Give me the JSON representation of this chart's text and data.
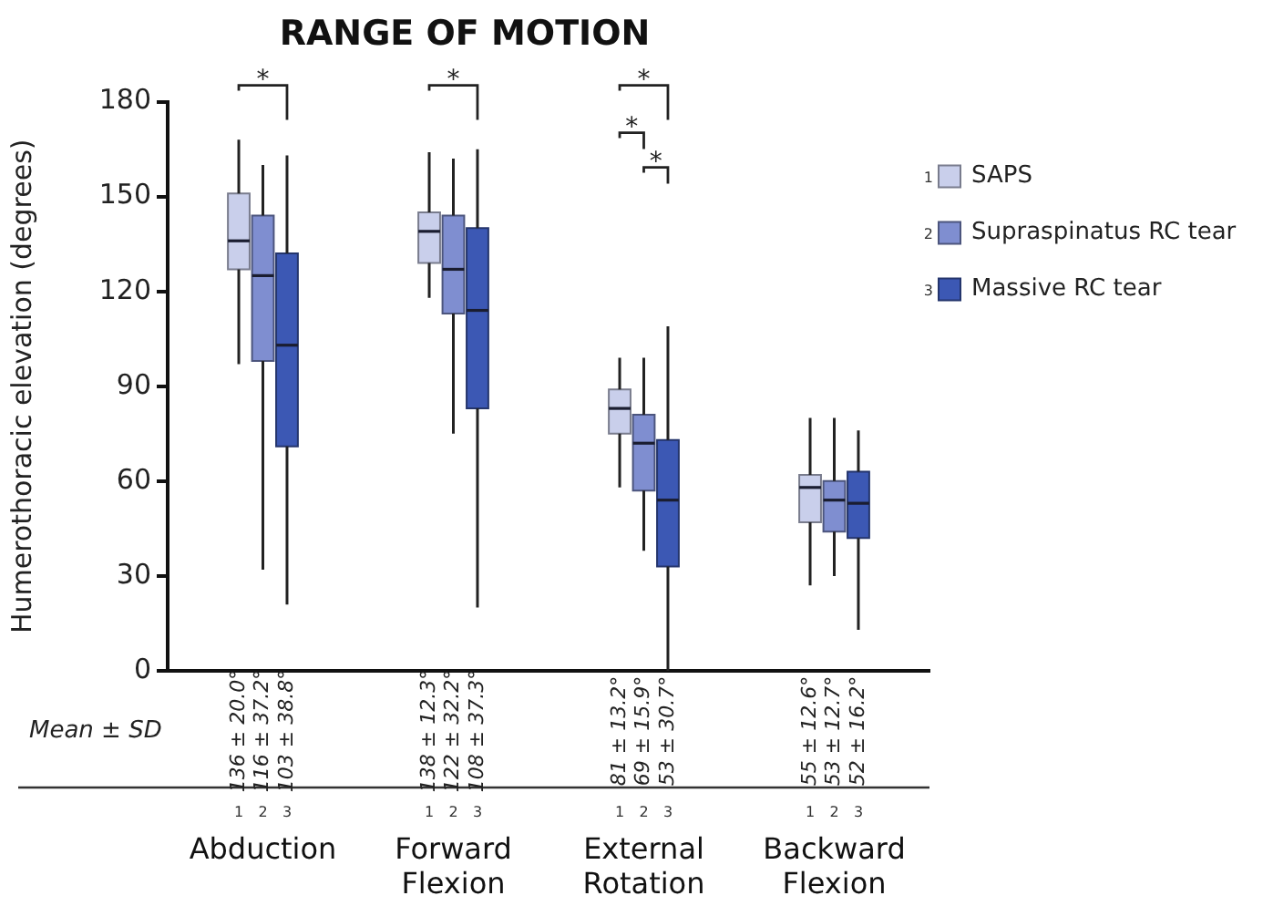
{
  "chart_data": {
    "type": "box",
    "title": "RANGE OF MOTION",
    "ylabel": "Humerothoracic elevation (degrees)",
    "categories": [
      "Abduction",
      "Forward Flexion",
      "External Rotation",
      "Backward Flexion"
    ],
    "ylim": [
      0,
      180
    ],
    "yticks": [
      0,
      30,
      60,
      90,
      120,
      150,
      180
    ],
    "grid": false,
    "legend": "right",
    "series": [
      {
        "name": "SAPS",
        "color": "#c9cfeb",
        "boxes": [
          {
            "low": 97,
            "q1": 127,
            "median": 136,
            "q3": 151,
            "high": 168
          },
          {
            "low": 118,
            "q1": 129,
            "median": 139,
            "q3": 145,
            "high": 164
          },
          {
            "low": 58,
            "q1": 75,
            "median": 83,
            "q3": 89,
            "high": 99
          },
          {
            "low": 27,
            "q1": 47,
            "median": 58,
            "q3": 62,
            "high": 80
          }
        ]
      },
      {
        "name": "Supraspinatus RC tear",
        "color": "#7f8ed0",
        "boxes": [
          {
            "low": 32,
            "q1": 98,
            "median": 125,
            "q3": 144,
            "high": 160
          },
          {
            "low": 75,
            "q1": 113,
            "median": 127,
            "q3": 144,
            "high": 162
          },
          {
            "low": 38,
            "q1": 57,
            "median": 72,
            "q3": 81,
            "high": 99
          },
          {
            "low": 30,
            "q1": 44,
            "median": 54,
            "q3": 60,
            "high": 80
          }
        ]
      },
      {
        "name": "Massive RC tear",
        "color": "#3c58b4",
        "boxes": [
          {
            "low": 21,
            "q1": 71,
            "median": 103,
            "q3": 132,
            "high": 163
          },
          {
            "low": 20,
            "q1": 83,
            "median": 114,
            "q3": 140,
            "high": 165
          },
          {
            "low": 0,
            "q1": 33,
            "median": 54,
            "q3": 73,
            "high": 109
          },
          {
            "low": 13,
            "q1": 42,
            "median": 53,
            "q3": 63,
            "high": 76
          }
        ]
      }
    ],
    "annotations": [
      "*",
      "*",
      "*",
      "*",
      "*",
      "Mean ± SD",
      "136 ± 20.0°",
      "116 ± 37.2°",
      "103 ± 38.8°",
      "138 ± 12.3°",
      "122 ± 32.2°",
      "108 ± 37.3°",
      "81 ± 13.2°",
      "69 ± 15.9°",
      "53 ± 30.7°",
      "55 ± 12.6°",
      "53 ± 12.7°",
      "52 ± 16.2°",
      "1",
      "2",
      "3"
    ]
  }
}
